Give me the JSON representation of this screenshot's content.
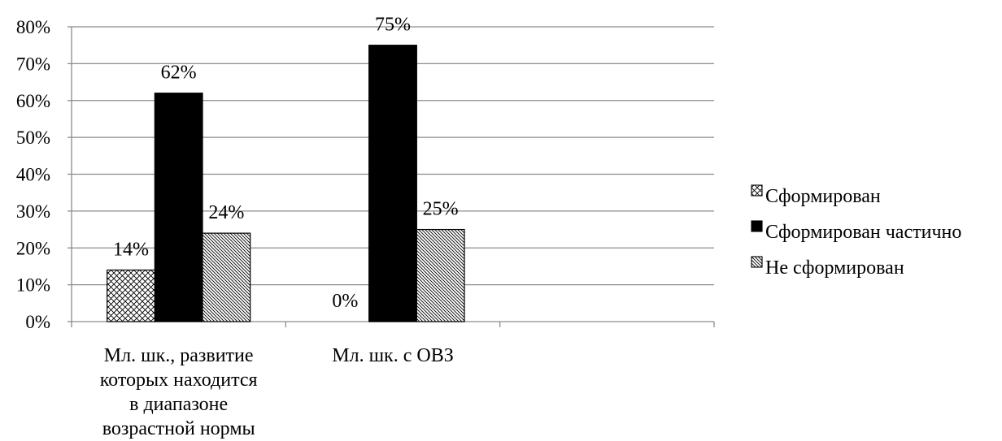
{
  "chart_data": {
    "type": "bar",
    "categories": [
      [
        "Мл. шк., развитие",
        "которых находится",
        "в диапазоне",
        "возрастной нормы"
      ],
      [
        "Мл. шк. с ОВЗ"
      ],
      []
    ],
    "series": [
      {
        "name": "Сформирован",
        "values": [
          14,
          0,
          null
        ],
        "labels": [
          "14%",
          "0%",
          ""
        ],
        "pattern": "crosshatch"
      },
      {
        "name": "Сформирован частично",
        "values": [
          62,
          75,
          null
        ],
        "labels": [
          "62%",
          "75%",
          ""
        ],
        "pattern": "solid"
      },
      {
        "name": "Не сформирован",
        "values": [
          24,
          25,
          null
        ],
        "labels": [
          "24%",
          "25%",
          ""
        ],
        "pattern": "diagonal"
      }
    ],
    "yticks": [
      "0%",
      "10%",
      "20%",
      "30%",
      "40%",
      "50%",
      "60%",
      "70%",
      "80%"
    ],
    "ylim": [
      0,
      80
    ],
    "grid": true,
    "legend_position": "right",
    "colors": {
      "bar_fill": "#000000",
      "pattern_bg": "#ffffff",
      "grid": "#8c8c8c"
    }
  }
}
